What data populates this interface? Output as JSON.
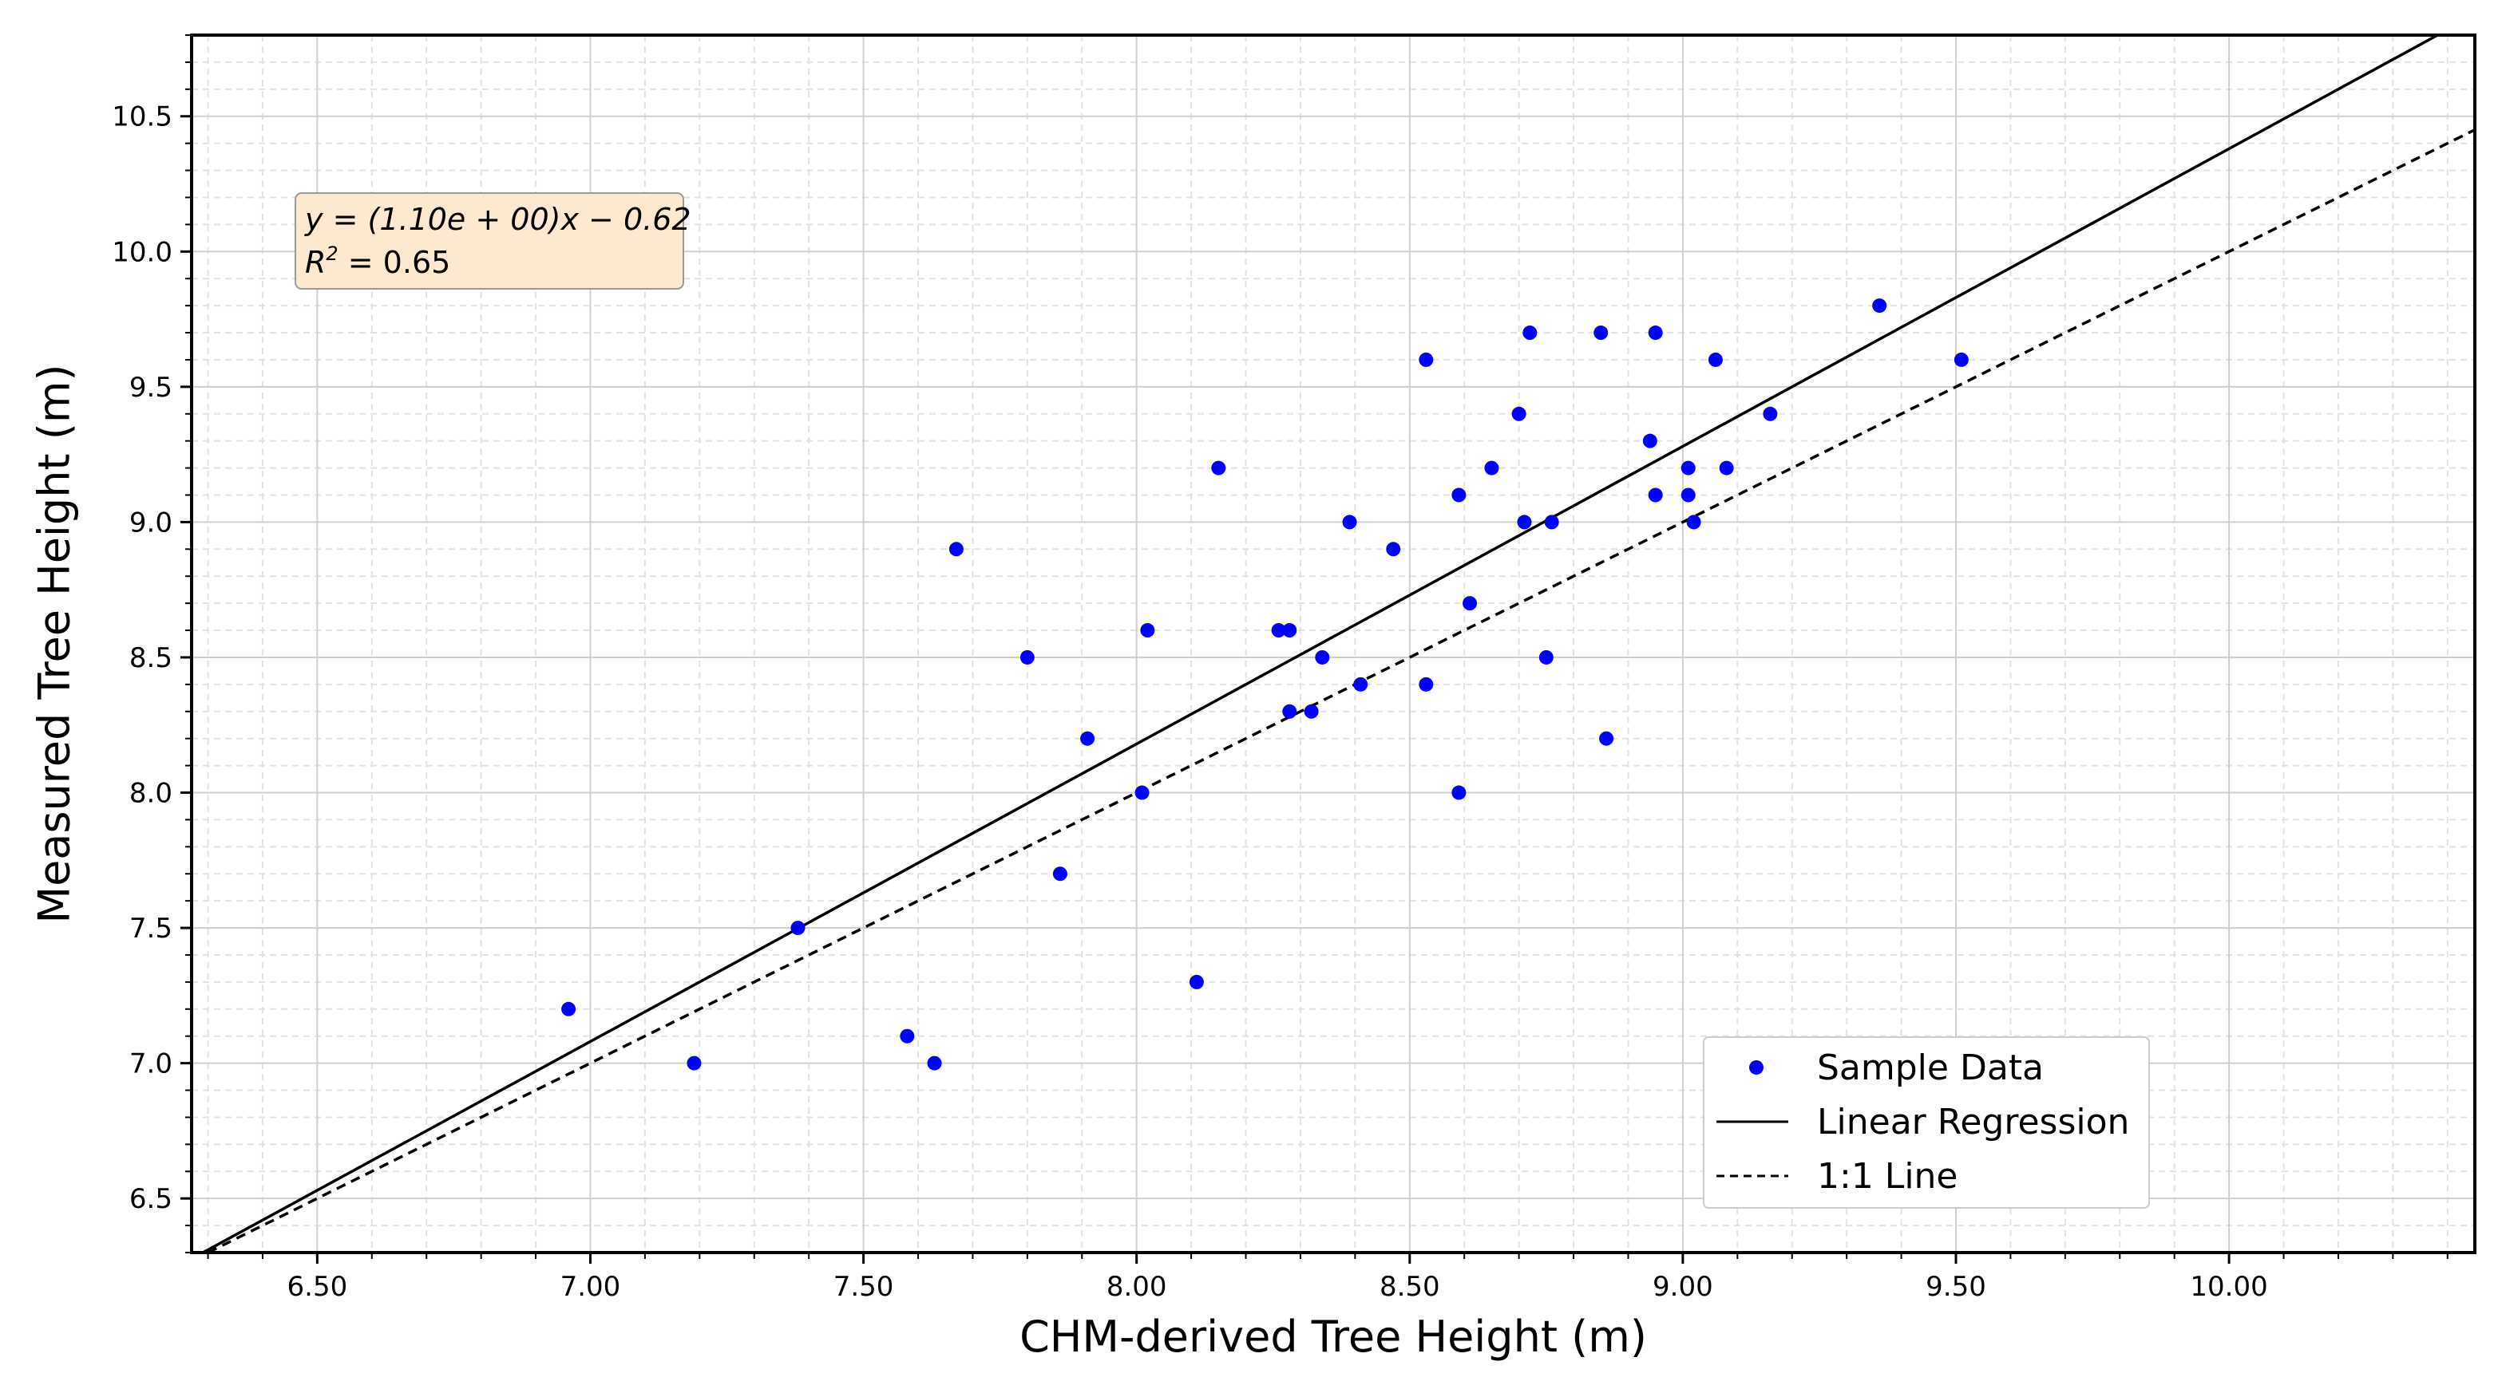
{
  "chart_data": {
    "type": "scatter",
    "title": "",
    "xlabel": "CHM-derived Tree Height (m)",
    "ylabel": "Measured Tree Height (m)",
    "xlim": [
      6.27,
      10.45
    ],
    "ylim": [
      6.3,
      10.8
    ],
    "x_ticks": [
      6.5,
      7.0,
      7.5,
      8.0,
      8.5,
      9.0,
      9.5,
      10.0
    ],
    "x_tick_labels": [
      "6.50",
      "7.00",
      "7.50",
      "8.00",
      "8.50",
      "9.00",
      "9.50",
      "10.00"
    ],
    "y_ticks": [
      6.5,
      7.0,
      7.5,
      8.0,
      8.5,
      9.0,
      9.5,
      10.0,
      10.5
    ],
    "y_tick_labels": [
      "6.5",
      "7.0",
      "7.5",
      "8.0",
      "8.5",
      "9.0",
      "9.5",
      "10.0",
      "10.5"
    ],
    "grid": true,
    "series": [
      {
        "name": "Sample Data",
        "kind": "scatter",
        "color": "#0000ff",
        "points": [
          [
            6.96,
            7.2
          ],
          [
            7.19,
            7.0
          ],
          [
            7.38,
            7.5
          ],
          [
            7.58,
            7.1
          ],
          [
            7.63,
            7.0
          ],
          [
            7.67,
            8.9
          ],
          [
            7.8,
            8.5
          ],
          [
            7.86,
            7.7
          ],
          [
            7.91,
            8.2
          ],
          [
            8.01,
            8.0
          ],
          [
            8.02,
            8.6
          ],
          [
            8.11,
            7.3
          ],
          [
            8.15,
            9.2
          ],
          [
            8.26,
            8.6
          ],
          [
            8.28,
            8.6
          ],
          [
            8.28,
            8.3
          ],
          [
            8.32,
            8.3
          ],
          [
            8.34,
            8.5
          ],
          [
            8.39,
            9.0
          ],
          [
            8.41,
            8.4
          ],
          [
            8.47,
            8.9
          ],
          [
            8.53,
            9.6
          ],
          [
            8.53,
            8.4
          ],
          [
            8.59,
            9.1
          ],
          [
            8.59,
            8.0
          ],
          [
            8.61,
            8.7
          ],
          [
            8.65,
            9.2
          ],
          [
            8.7,
            9.4
          ],
          [
            8.71,
            9.0
          ],
          [
            8.72,
            9.7
          ],
          [
            8.75,
            8.5
          ],
          [
            8.76,
            9.0
          ],
          [
            8.85,
            9.7
          ],
          [
            8.86,
            8.2
          ],
          [
            8.94,
            9.3
          ],
          [
            8.95,
            9.1
          ],
          [
            8.95,
            9.7
          ],
          [
            9.01,
            9.2
          ],
          [
            9.01,
            9.1
          ],
          [
            9.02,
            9.0
          ],
          [
            9.06,
            9.6
          ],
          [
            9.08,
            9.2
          ],
          [
            9.16,
            9.4
          ],
          [
            9.36,
            9.8
          ],
          [
            9.51,
            9.6
          ]
        ]
      },
      {
        "name": "Linear Regression",
        "kind": "line",
        "style": "solid",
        "color": "#000000",
        "slope": 1.1,
        "intercept": -0.62
      },
      {
        "name": "1:1 Line",
        "kind": "line",
        "style": "dashed",
        "color": "#000000",
        "slope": 1.0,
        "intercept": 0.0
      }
    ],
    "annotation": {
      "equation": "y = (1.10e + 00)x − 0.62",
      "r2_label": "R",
      "r2_sup": "2",
      "r2_value": " = 0.65",
      "box_fill": "#fde9d0",
      "box_stroke": "#9a9a9a"
    },
    "legend": {
      "location": "lower-right",
      "entries": [
        "Sample Data",
        "Linear Regression",
        "1:1 Line"
      ]
    }
  }
}
